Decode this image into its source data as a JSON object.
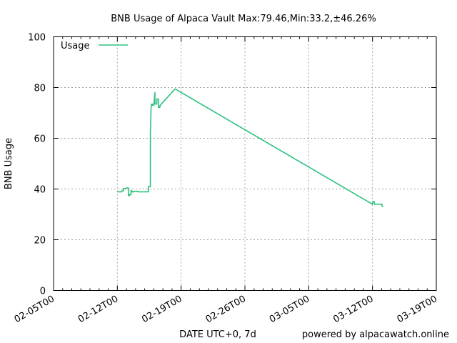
{
  "chart_data": {
    "type": "line",
    "title": "BNB Usage of Alpaca Vault Max:79.46,Min:33.2,±46.26%",
    "xlabel": "DATE UTC+0, 7d",
    "ylabel": "BNB Usage",
    "footer": "powered by alpacawatch.online",
    "xlim": [
      "2021-02-05",
      "2021-03-19"
    ],
    "ylim": [
      0,
      100
    ],
    "x_ticks": [
      "02-05T00",
      "02-12T00",
      "02-19T00",
      "02-26T00",
      "03-05T00",
      "03-12T00",
      "03-19T00"
    ],
    "y_ticks": [
      0,
      20,
      40,
      60,
      80,
      100
    ],
    "grid": true,
    "legend": {
      "position": "top-left",
      "entries": [
        "Usage"
      ]
    },
    "colors": {
      "series": "#2ec27e"
    },
    "series": [
      {
        "name": "Usage",
        "x": [
          "2021-02-12T00:00",
          "2021-02-12T12:00",
          "2021-02-12T12:00",
          "2021-02-12T16:00",
          "2021-02-12T16:00",
          "2021-02-13T00:00",
          "2021-02-13T00:00",
          "2021-02-13T05:00",
          "2021-02-13T05:00",
          "2021-02-13T08:00",
          "2021-02-13T08:00",
          "2021-02-13T12:00",
          "2021-02-13T12:00",
          "2021-02-13T14:00",
          "2021-02-13T14:00",
          "2021-02-13T20:00",
          "2021-02-13T20:00",
          "2021-02-14T06:00",
          "2021-02-14T06:00",
          "2021-02-15T10:00",
          "2021-02-15T10:00",
          "2021-02-15T15:00",
          "2021-02-15T15:00",
          "2021-02-15T17:00",
          "2021-02-15T19:00",
          "2021-02-15T20:00",
          "2021-02-15T20:00",
          "2021-02-16T00:00",
          "2021-02-16T03:00",
          "2021-02-16T03:00",
          "2021-02-16T08:00",
          "2021-02-16T08:00",
          "2021-02-16T12:00",
          "2021-02-16T12:00",
          "2021-02-16T16:00",
          "2021-02-16T16:00",
          "2021-02-16T20:00",
          "2021-02-18T08:00",
          "2021-03-12T00:00",
          "2021-03-12T00:00",
          "2021-03-12T05:00",
          "2021-03-12T05:00",
          "2021-03-13T01:00",
          "2021-03-13T01:00",
          "2021-03-13T04:00"
        ],
        "values": [
          38.9,
          38.9,
          39.3,
          39.3,
          40.2,
          40.2,
          40.4,
          40.4,
          37.4,
          37.4,
          37.8,
          37.8,
          39.4,
          39.4,
          38.9,
          38.9,
          39.1,
          39.1,
          38.9,
          38.9,
          41.0,
          41.0,
          62.0,
          73.0,
          73.5,
          73.5,
          73.0,
          73.0,
          78.0,
          73.5,
          73.5,
          75.5,
          75.5,
          72.2,
          72.2,
          72.8,
          73.5,
          79.46,
          34.0,
          35.0,
          35.0,
          34.0,
          34.0,
          33.2,
          33.2
        ]
      }
    ]
  }
}
